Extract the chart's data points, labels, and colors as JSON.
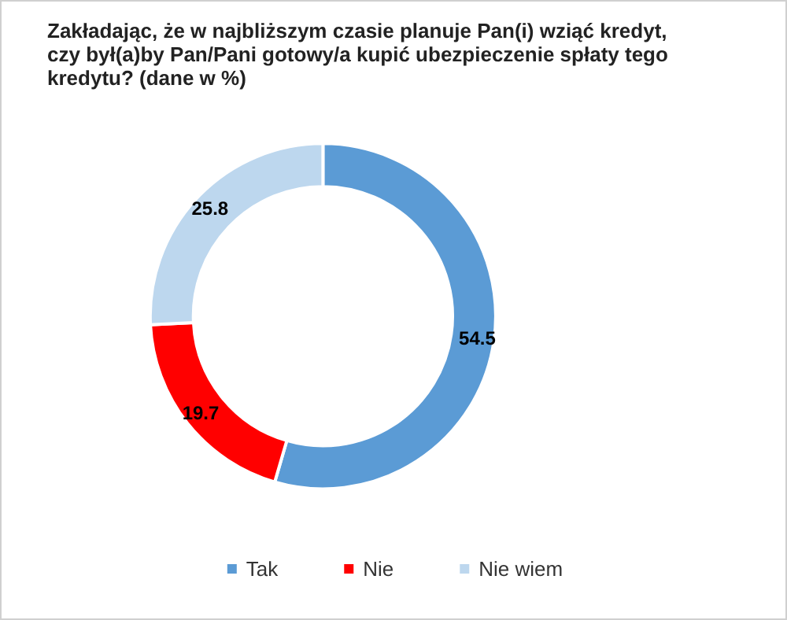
{
  "chart_data": {
    "type": "donut",
    "title": "Zakładając, że w najbliższym czasie planuje Pan(i) wziąć kredyt, czy był(a)by Pan/Pani gotowy/a kupić ubezpieczenie spłaty tego kredytu? (dane w %)",
    "categories": [
      "Tak",
      "Nie",
      "Nie wiem"
    ],
    "values": [
      54.5,
      19.7,
      25.8
    ],
    "colors": [
      "#5b9bd5",
      "#ff0000",
      "#bdd7ee"
    ],
    "data_labels": true,
    "legend": "bottom"
  }
}
